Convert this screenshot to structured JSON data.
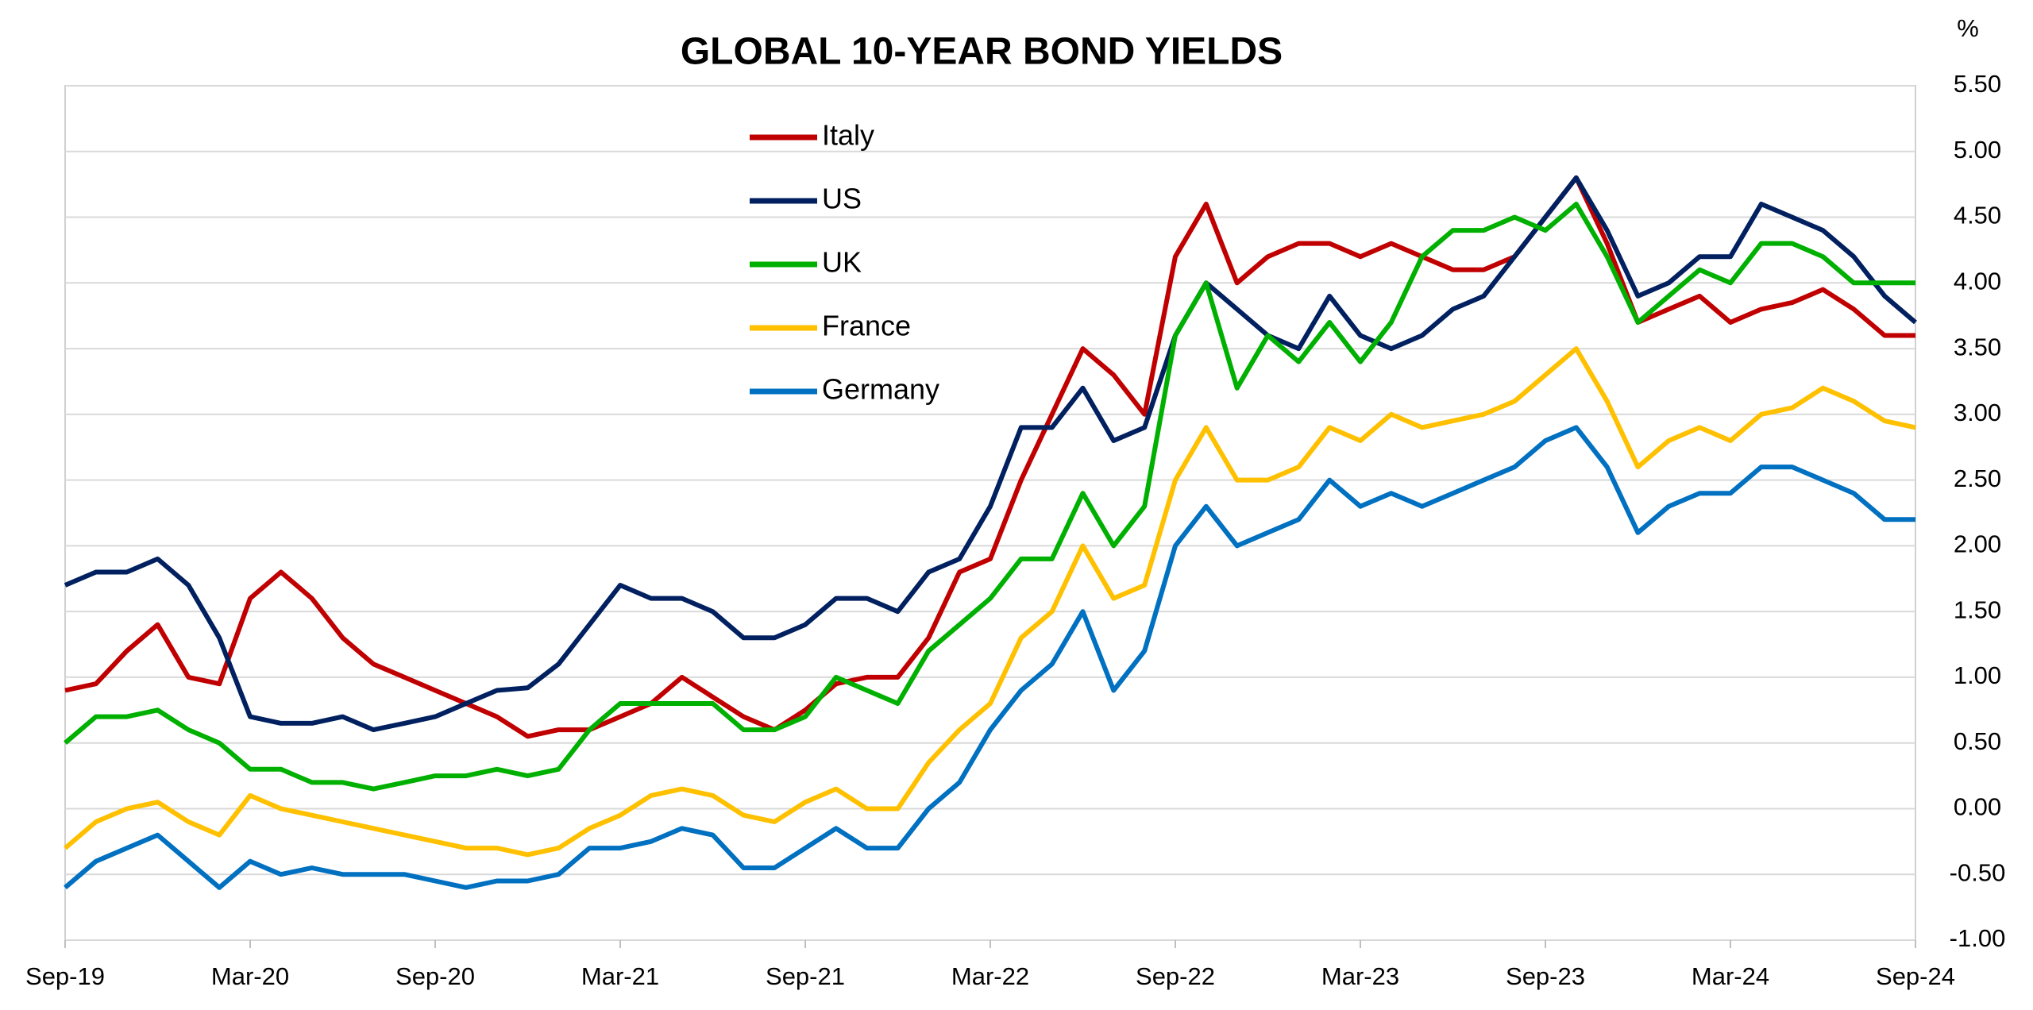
{
  "chart_data": {
    "type": "line",
    "title": "GLOBAL 10-YEAR BOND YIELDS",
    "y_unit": "%",
    "categories": [
      "Sep-19",
      null,
      null,
      null,
      null,
      null,
      "Mar-20",
      null,
      null,
      null,
      null,
      null,
      "Sep-20",
      null,
      null,
      null,
      null,
      null,
      "Mar-21",
      null,
      null,
      null,
      null,
      null,
      "Sep-21",
      null,
      null,
      null,
      null,
      null,
      "Mar-22",
      null,
      null,
      null,
      null,
      null,
      "Sep-22",
      null,
      null,
      null,
      null,
      null,
      "Mar-23",
      null,
      null,
      null,
      null,
      null,
      "Sep-23",
      null,
      null,
      null,
      null,
      null,
      "Mar-24",
      null,
      null,
      null,
      null,
      null,
      "Sep-24"
    ],
    "series": [
      {
        "name": "Italy",
        "color": "#c00000",
        "values": [
          0.9,
          0.95,
          1.2,
          1.4,
          1.0,
          0.95,
          1.6,
          1.8,
          1.6,
          1.3,
          1.1,
          1.0,
          0.9,
          0.8,
          0.7,
          0.55,
          0.6,
          0.6,
          0.7,
          0.8,
          1.0,
          0.85,
          0.7,
          0.6,
          0.75,
          0.95,
          1.0,
          1.0,
          1.3,
          1.8,
          1.9,
          2.5,
          3.0,
          3.5,
          3.3,
          3.0,
          4.2,
          4.6,
          4.0,
          4.2,
          4.3,
          4.3,
          4.2,
          4.3,
          4.2,
          4.1,
          4.1,
          4.2,
          4.5,
          4.8,
          4.3,
          3.7,
          3.8,
          3.9,
          3.7,
          3.8,
          3.85,
          3.95,
          3.8,
          3.6,
          3.6
        ]
      },
      {
        "name": "US",
        "color": "#002060",
        "values": [
          1.7,
          1.8,
          1.8,
          1.9,
          1.7,
          1.3,
          0.7,
          0.65,
          0.65,
          0.7,
          0.6,
          0.65,
          0.7,
          0.8,
          0.9,
          0.92,
          1.1,
          1.4,
          1.7,
          1.6,
          1.6,
          1.5,
          1.3,
          1.3,
          1.4,
          1.6,
          1.6,
          1.5,
          1.8,
          1.9,
          2.3,
          2.9,
          2.9,
          3.2,
          2.8,
          2.9,
          3.6,
          4.0,
          3.8,
          3.6,
          3.5,
          3.9,
          3.6,
          3.5,
          3.6,
          3.8,
          3.9,
          4.2,
          4.5,
          4.8,
          4.4,
          3.9,
          4.0,
          4.2,
          4.2,
          4.6,
          4.5,
          4.4,
          4.2,
          3.9,
          3.7
        ]
      },
      {
        "name": "UK",
        "color": "#00b000",
        "values": [
          0.5,
          0.7,
          0.7,
          0.75,
          0.6,
          0.5,
          0.3,
          0.3,
          0.2,
          0.2,
          0.15,
          0.2,
          0.25,
          0.25,
          0.3,
          0.25,
          0.3,
          0.6,
          0.8,
          0.8,
          0.8,
          0.8,
          0.6,
          0.6,
          0.7,
          1.0,
          0.9,
          0.8,
          1.2,
          1.4,
          1.6,
          1.9,
          1.9,
          2.4,
          2.0,
          2.3,
          3.6,
          4.0,
          3.2,
          3.6,
          3.4,
          3.7,
          3.4,
          3.7,
          4.2,
          4.4,
          4.4,
          4.5,
          4.4,
          4.6,
          4.2,
          3.7,
          3.9,
          4.1,
          4.0,
          4.3,
          4.3,
          4.2,
          4.0,
          4.0,
          4.0
        ]
      },
      {
        "name": "France",
        "color": "#ffc000",
        "values": [
          -0.3,
          -0.1,
          0.0,
          0.05,
          -0.1,
          -0.2,
          0.1,
          0.0,
          -0.05,
          -0.1,
          -0.15,
          -0.2,
          -0.25,
          -0.3,
          -0.3,
          -0.35,
          -0.3,
          -0.15,
          -0.05,
          0.1,
          0.15,
          0.1,
          -0.05,
          -0.1,
          0.05,
          0.15,
          0.0,
          0.0,
          0.35,
          0.6,
          0.8,
          1.3,
          1.5,
          2.0,
          1.6,
          1.7,
          2.5,
          2.9,
          2.5,
          2.5,
          2.6,
          2.9,
          2.8,
          3.0,
          2.9,
          2.95,
          3.0,
          3.1,
          3.3,
          3.5,
          3.1,
          2.6,
          2.8,
          2.9,
          2.8,
          3.0,
          3.05,
          3.2,
          3.1,
          2.95,
          2.9
        ]
      },
      {
        "name": "Germany",
        "color": "#0070c0",
        "values": [
          -0.6,
          -0.4,
          -0.3,
          -0.2,
          -0.4,
          -0.6,
          -0.4,
          -0.5,
          -0.45,
          -0.5,
          -0.5,
          -0.5,
          -0.55,
          -0.6,
          -0.55,
          -0.55,
          -0.5,
          -0.3,
          -0.3,
          -0.25,
          -0.15,
          -0.2,
          -0.45,
          -0.45,
          -0.3,
          -0.15,
          -0.3,
          -0.3,
          0.0,
          0.2,
          0.6,
          0.9,
          1.1,
          1.5,
          0.9,
          1.2,
          2.0,
          2.3,
          2.0,
          2.1,
          2.2,
          2.5,
          2.3,
          2.4,
          2.3,
          2.4,
          2.5,
          2.6,
          2.8,
          2.9,
          2.6,
          2.1,
          2.3,
          2.4,
          2.4,
          2.6,
          2.6,
          2.5,
          2.4,
          2.2,
          2.2
        ]
      }
    ],
    "ylim": [
      -1,
      5.5
    ],
    "yticks": [
      {
        "value": -1,
        "label": "-1.00"
      },
      {
        "value": -0.5,
        "label": "-0.50"
      },
      {
        "value": 0,
        "label": "0.00"
      },
      {
        "value": 0.5,
        "label": "0.50"
      },
      {
        "value": 1,
        "label": "1.00"
      },
      {
        "value": 1.5,
        "label": "1.50"
      },
      {
        "value": 2,
        "label": "2.00"
      },
      {
        "value": 2.5,
        "label": "2.50"
      },
      {
        "value": 3,
        "label": "3.00"
      },
      {
        "value": 3.5,
        "label": "3.50"
      },
      {
        "value": 4,
        "label": "4.00"
      },
      {
        "value": 4.5,
        "label": "4.50"
      },
      {
        "value": 5,
        "label": "5.00"
      },
      {
        "value": 5.5,
        "label": "5.50"
      }
    ],
    "grid": true,
    "legend": "top"
  }
}
